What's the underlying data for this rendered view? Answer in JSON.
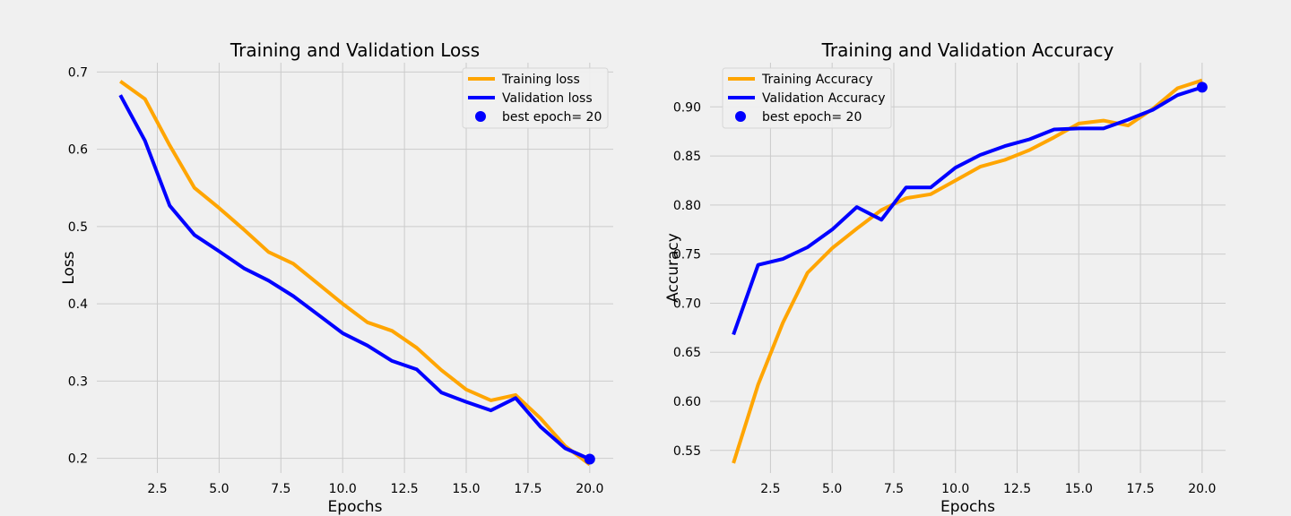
{
  "style": {
    "background": "#f0f0f0",
    "grid_color": "#cbcbcb",
    "legend_bg": "#f0f0f0",
    "legend_border": "#d5d5d5",
    "best_marker_color": "#0000ff"
  },
  "chart_data": [
    {
      "type": "line",
      "title": "Training and Validation Loss",
      "xlabel": "Epochs",
      "ylabel": "Loss",
      "xlim": [
        0.05,
        20.95
      ],
      "ylim": [
        0.181,
        0.712
      ],
      "xticks": [
        2.5,
        5.0,
        7.5,
        10.0,
        12.5,
        15.0,
        17.5,
        20.0
      ],
      "xtick_labels": [
        "2.5",
        "5.0",
        "7.5",
        "10.0",
        "12.5",
        "15.0",
        "17.5",
        "20.0"
      ],
      "yticks": [
        0.2,
        0.3,
        0.4,
        0.5,
        0.6,
        0.7
      ],
      "ytick_labels": [
        "0.2",
        "0.3",
        "0.4",
        "0.5",
        "0.6",
        "0.7"
      ],
      "grid": true,
      "legend_position": "top-right",
      "x": [
        1,
        2,
        3,
        4,
        5,
        6,
        7,
        8,
        9,
        10,
        11,
        12,
        13,
        14,
        15,
        16,
        17,
        18,
        19,
        20
      ],
      "series": [
        {
          "name": "Training loss",
          "color": "#ffa500",
          "values": [
            0.688,
            0.665,
            0.605,
            0.55,
            0.524,
            0.496,
            0.467,
            0.452,
            0.426,
            0.4,
            0.376,
            0.365,
            0.343,
            0.314,
            0.289,
            0.275,
            0.282,
            0.252,
            0.216,
            0.192
          ]
        },
        {
          "name": "Validation loss",
          "color": "#0000ff",
          "values": [
            0.67,
            0.611,
            0.527,
            0.489,
            0.468,
            0.446,
            0.43,
            0.41,
            0.386,
            0.362,
            0.346,
            0.326,
            0.315,
            0.285,
            0.273,
            0.262,
            0.278,
            0.241,
            0.213,
            0.199
          ]
        }
      ],
      "best": {
        "label": "best epoch= 20",
        "x": 20,
        "y": 0.199
      }
    },
    {
      "type": "line",
      "title": "Training and Validation Accuracy",
      "xlabel": "Epochs",
      "ylabel": "Accuracy",
      "xlim": [
        0.05,
        20.95
      ],
      "ylim": [
        0.527,
        0.945
      ],
      "xticks": [
        2.5,
        5.0,
        7.5,
        10.0,
        12.5,
        15.0,
        17.5,
        20.0
      ],
      "xtick_labels": [
        "2.5",
        "5.0",
        "7.5",
        "10.0",
        "12.5",
        "15.0",
        "17.5",
        "20.0"
      ],
      "yticks": [
        0.55,
        0.6,
        0.65,
        0.7,
        0.75,
        0.8,
        0.85,
        0.9
      ],
      "ytick_labels": [
        "0.55",
        "0.60",
        "0.65",
        "0.70",
        "0.75",
        "0.80",
        "0.85",
        "0.90"
      ],
      "grid": true,
      "legend_position": "top-left",
      "x": [
        1,
        2,
        3,
        4,
        5,
        6,
        7,
        8,
        9,
        10,
        11,
        12,
        13,
        14,
        15,
        16,
        17,
        18,
        19,
        20
      ],
      "series": [
        {
          "name": "Training Accuracy",
          "color": "#ffa500",
          "values": [
            0.537,
            0.617,
            0.68,
            0.731,
            0.756,
            0.776,
            0.795,
            0.807,
            0.811,
            0.825,
            0.839,
            0.846,
            0.856,
            0.869,
            0.883,
            0.886,
            0.881,
            0.898,
            0.919,
            0.927
          ]
        },
        {
          "name": "Validation Accuracy",
          "color": "#0000ff",
          "values": [
            0.668,
            0.739,
            0.745,
            0.757,
            0.775,
            0.798,
            0.785,
            0.818,
            0.818,
            0.838,
            0.851,
            0.86,
            0.867,
            0.877,
            0.878,
            0.878,
            0.887,
            0.897,
            0.912,
            0.92
          ]
        }
      ],
      "best": {
        "label": "best epoch= 20",
        "x": 20,
        "y": 0.92
      }
    }
  ]
}
